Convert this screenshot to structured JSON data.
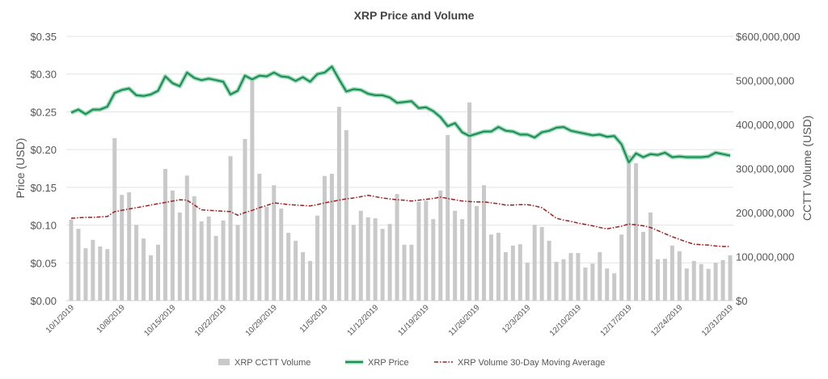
{
  "chart_data": {
    "type": "bar+line",
    "title": "XRP Price and Volume",
    "ylabel": "Price (USD)",
    "y2label": "CCTT Volume (USD)",
    "ylim": [
      0,
      0.35
    ],
    "y2lim": [
      0,
      600000000
    ],
    "yticks": [
      "$0.00",
      "$0.05",
      "$0.10",
      "$0.15",
      "$0.20",
      "$0.25",
      "$0.30",
      "$0.35"
    ],
    "y2ticks": [
      "$0",
      "100,000,000",
      "200,000,000",
      "300,000,000",
      "400,000,000",
      "500,000,000",
      "$600,000,000"
    ],
    "xticks": [
      "10/1/2019",
      "10/8/2019",
      "10/15/2019",
      "10/22/2019",
      "10/29/2019",
      "11/5/2019",
      "11/12/2019",
      "11/19/2019",
      "11/26/2019",
      "12/3/2019",
      "12/10/2019",
      "12/17/2019",
      "12/24/2019",
      "12/31/2019"
    ],
    "grid": true,
    "legend_position": "bottom",
    "colors": {
      "volume": "#c9c9c9",
      "price": "#1f8a55",
      "price_glow": "#8fd9b0",
      "moving_average": "#9e1f1f",
      "grid": "#e3e3e3"
    },
    "dates": [
      "10/1/2019",
      "10/2/2019",
      "10/3/2019",
      "10/4/2019",
      "10/5/2019",
      "10/6/2019",
      "10/7/2019",
      "10/8/2019",
      "10/9/2019",
      "10/10/2019",
      "10/11/2019",
      "10/12/2019",
      "10/13/2019",
      "10/14/2019",
      "10/15/2019",
      "10/16/2019",
      "10/17/2019",
      "10/18/2019",
      "10/19/2019",
      "10/20/2019",
      "10/21/2019",
      "10/22/2019",
      "10/23/2019",
      "10/24/2019",
      "10/25/2019",
      "10/26/2019",
      "10/27/2019",
      "10/28/2019",
      "10/29/2019",
      "10/30/2019",
      "10/31/2019",
      "11/1/2019",
      "11/2/2019",
      "11/3/2019",
      "11/4/2019",
      "11/5/2019",
      "11/6/2019",
      "11/7/2019",
      "11/8/2019",
      "11/9/2019",
      "11/10/2019",
      "11/11/2019",
      "11/12/2019",
      "11/13/2019",
      "11/14/2019",
      "11/15/2019",
      "11/16/2019",
      "11/17/2019",
      "11/18/2019",
      "11/19/2019",
      "11/20/2019",
      "11/21/2019",
      "11/22/2019",
      "11/23/2019",
      "11/24/2019",
      "11/25/2019",
      "11/26/2019",
      "11/27/2019",
      "11/28/2019",
      "11/29/2019",
      "11/30/2019",
      "12/1/2019",
      "12/2/2019",
      "12/3/2019",
      "12/4/2019",
      "12/5/2019",
      "12/6/2019",
      "12/7/2019",
      "12/8/2019",
      "12/9/2019",
      "12/10/2019",
      "12/11/2019",
      "12/12/2019",
      "12/13/2019",
      "12/14/2019",
      "12/15/2019",
      "12/16/2019",
      "12/17/2019",
      "12/18/2019",
      "12/19/2019",
      "12/20/2019",
      "12/21/2019",
      "12/22/2019",
      "12/23/2019",
      "12/24/2019",
      "12/25/2019",
      "12/26/2019",
      "12/27/2019",
      "12/28/2019",
      "12/29/2019",
      "12/30/2019",
      "12/31/2019"
    ],
    "series": [
      {
        "name": "XRP CCTT Volume",
        "type": "bar",
        "axis": "right",
        "values": [
          184000000,
          163000000,
          119000000,
          138000000,
          123000000,
          117000000,
          369000000,
          240000000,
          246000000,
          172000000,
          141000000,
          103000000,
          127000000,
          299000000,
          250000000,
          200000000,
          284000000,
          237000000,
          180000000,
          191000000,
          147000000,
          182000000,
          328000000,
          172000000,
          367000000,
          499000000,
          288000000,
          213000000,
          262000000,
          209000000,
          154000000,
          136000000,
          110000000,
          90000000,
          193000000,
          283000000,
          288000000,
          440000000,
          387000000,
          172000000,
          204000000,
          189000000,
          187000000,
          163000000,
          174000000,
          242000000,
          127000000,
          127000000,
          224000000,
          227000000,
          185000000,
          250000000,
          376000000,
          204000000,
          185000000,
          450000000,
          215000000,
          262000000,
          150000000,
          154000000,
          110000000,
          125000000,
          128000000,
          86000000,
          172000000,
          167000000,
          136000000,
          88000000,
          94000000,
          108000000,
          108000000,
          75000000,
          84000000,
          110000000,
          73000000,
          62000000,
          150000000,
          330000000,
          312000000,
          156000000,
          200000000,
          94000000,
          95000000,
          125000000,
          112000000,
          73000000,
          90000000,
          83000000,
          72000000,
          86000000,
          92000000,
          103000000
        ]
      },
      {
        "name": "XRP Price",
        "type": "line",
        "axis": "left",
        "values": [
          0.249,
          0.253,
          0.247,
          0.253,
          0.253,
          0.257,
          0.275,
          0.279,
          0.281,
          0.272,
          0.271,
          0.273,
          0.278,
          0.297,
          0.288,
          0.284,
          0.302,
          0.295,
          0.292,
          0.294,
          0.292,
          0.29,
          0.273,
          0.278,
          0.298,
          0.293,
          0.298,
          0.297,
          0.302,
          0.297,
          0.296,
          0.291,
          0.296,
          0.29,
          0.3,
          0.302,
          0.31,
          0.293,
          0.277,
          0.28,
          0.279,
          0.274,
          0.272,
          0.272,
          0.269,
          0.262,
          0.263,
          0.264,
          0.255,
          0.256,
          0.251,
          0.243,
          0.231,
          0.235,
          0.223,
          0.218,
          0.221,
          0.224,
          0.224,
          0.23,
          0.225,
          0.224,
          0.22,
          0.22,
          0.216,
          0.223,
          0.225,
          0.229,
          0.23,
          0.225,
          0.223,
          0.221,
          0.219,
          0.22,
          0.217,
          0.218,
          0.207,
          0.183,
          0.195,
          0.19,
          0.194,
          0.193,
          0.196,
          0.19,
          0.191,
          0.19,
          0.19,
          0.19,
          0.191,
          0.196,
          0.194,
          0.192
        ]
      },
      {
        "name": "XRP Volume 30-Day Moving Average",
        "type": "line",
        "axis": "right",
        "values": [
          187000000,
          188000000,
          189000000,
          189000000,
          190000000,
          191000000,
          202000000,
          205000000,
          208000000,
          211000000,
          214000000,
          217000000,
          220000000,
          223000000,
          226000000,
          229000000,
          228000000,
          217000000,
          206000000,
          205000000,
          204000000,
          203000000,
          202000000,
          194000000,
          200000000,
          205000000,
          211000000,
          216000000,
          222000000,
          220000000,
          218000000,
          217000000,
          216000000,
          215000000,
          218000000,
          222000000,
          225000000,
          228000000,
          231000000,
          233000000,
          236000000,
          239000000,
          236000000,
          233000000,
          231000000,
          229000000,
          228000000,
          226000000,
          228000000,
          230000000,
          232000000,
          235000000,
          232000000,
          229000000,
          226000000,
          225000000,
          224000000,
          224000000,
          222000000,
          220000000,
          217000000,
          217000000,
          218000000,
          218000000,
          215000000,
          211000000,
          199000000,
          187000000,
          183000000,
          180000000,
          176000000,
          173000000,
          170000000,
          166000000,
          163000000,
          166000000,
          169000000,
          174000000,
          172000000,
          170000000,
          166000000,
          159000000,
          152000000,
          145000000,
          139000000,
          133000000,
          128000000,
          127000000,
          126000000,
          124000000,
          123000000,
          123000000
        ]
      }
    ]
  }
}
